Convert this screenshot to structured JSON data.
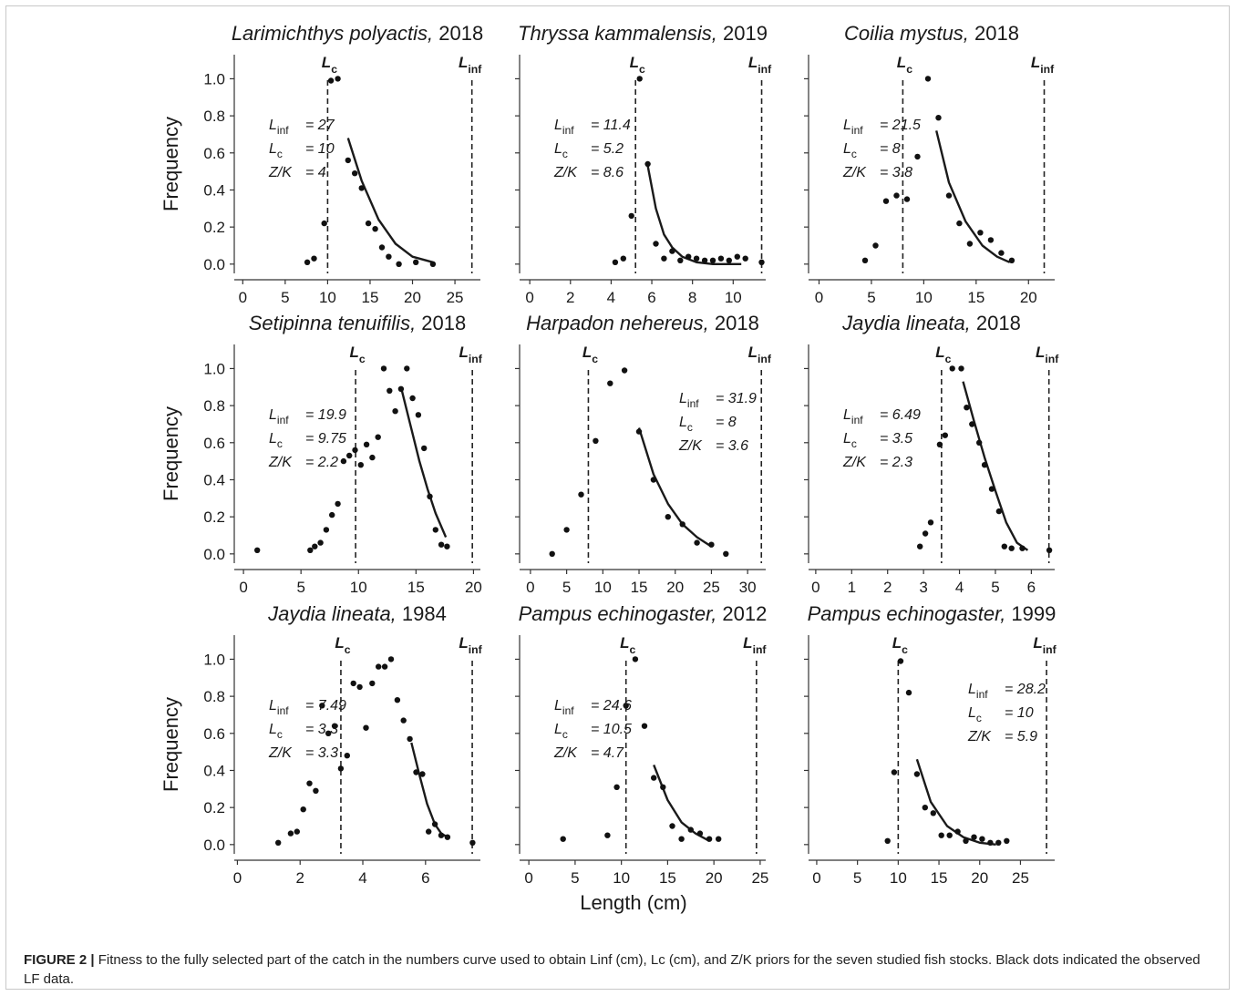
{
  "figure": {
    "xlabel": "Length (cm)",
    "ylabel": "Frequency",
    "caption_label": "FIGURE 2 |",
    "caption_text": "Fitness to the fully selected part of the catch in the numbers curve used to obtain Linf (cm), Lc (cm), and Z/K priors for the seven studied fish stocks. Black dots indicated the observed LF data."
  },
  "chart_data": [
    {
      "type": "scatter",
      "species": "Larimichthys polyactis",
      "year": "2018",
      "xlim": [
        -1,
        28
      ],
      "ylim": [
        -0.05,
        1.13
      ],
      "xticks": [
        0,
        5,
        10,
        15,
        20,
        25
      ],
      "yticks": [
        "0.0",
        "0.2",
        "0.4",
        "0.6",
        "0.8",
        "1.0"
      ],
      "Linf": 27,
      "Lc": 10,
      "params": {
        "Linf": "27",
        "Lc": "10",
        "ZK": "4"
      },
      "params_pos": "left",
      "points": [
        [
          7.6,
          0.01
        ],
        [
          8.4,
          0.03
        ],
        [
          9.6,
          0.22
        ],
        [
          10.4,
          0.99
        ],
        [
          11.2,
          1.0
        ],
        [
          12.4,
          0.56
        ],
        [
          13.2,
          0.49
        ],
        [
          14.0,
          0.41
        ],
        [
          14.8,
          0.22
        ],
        [
          15.6,
          0.19
        ],
        [
          16.4,
          0.09
        ],
        [
          17.2,
          0.04
        ],
        [
          18.4,
          0.0
        ],
        [
          20.4,
          0.01
        ],
        [
          22.4,
          0.0
        ]
      ],
      "fit": [
        [
          12.4,
          0.68
        ],
        [
          14,
          0.45
        ],
        [
          16,
          0.24
        ],
        [
          18,
          0.11
        ],
        [
          20,
          0.04
        ],
        [
          22.4,
          0.01
        ]
      ]
    },
    {
      "type": "scatter",
      "species": "Thryssa kammalensis",
      "year": "2019",
      "xlim": [
        -0.5,
        11.6
      ],
      "ylim": [
        -0.05,
        1.13
      ],
      "xticks": [
        0,
        2,
        4,
        6,
        8,
        10
      ],
      "yticks": [
        "0.0",
        "0.2",
        "0.4",
        "0.6",
        "0.8",
        "1.0"
      ],
      "Linf": 11.4,
      "Lc": 5.2,
      "params": {
        "Linf": "11.4",
        "Lc": "5.2",
        "ZK": "8.6"
      },
      "params_pos": "left",
      "points": [
        [
          4.2,
          0.01
        ],
        [
          4.6,
          0.03
        ],
        [
          5.0,
          0.26
        ],
        [
          5.4,
          1.0
        ],
        [
          5.8,
          0.54
        ],
        [
          6.2,
          0.11
        ],
        [
          6.6,
          0.03
        ],
        [
          7.0,
          0.07
        ],
        [
          7.4,
          0.02
        ],
        [
          7.8,
          0.04
        ],
        [
          8.2,
          0.03
        ],
        [
          8.6,
          0.02
        ],
        [
          9.0,
          0.02
        ],
        [
          9.4,
          0.03
        ],
        [
          9.8,
          0.02
        ],
        [
          10.2,
          0.04
        ],
        [
          10.6,
          0.03
        ],
        [
          11.4,
          0.01
        ]
      ],
      "fit": [
        [
          5.8,
          0.53
        ],
        [
          6.2,
          0.3
        ],
        [
          6.6,
          0.16
        ],
        [
          7.0,
          0.09
        ],
        [
          7.5,
          0.04
        ],
        [
          8.2,
          0.01
        ],
        [
          9,
          0.0
        ],
        [
          10.4,
          0.0
        ]
      ]
    },
    {
      "type": "scatter",
      "species": "Coilia mystus",
      "year": "2018",
      "xlim": [
        -1,
        22.5
      ],
      "ylim": [
        -0.05,
        1.13
      ],
      "xticks": [
        0,
        5,
        10,
        15,
        20
      ],
      "yticks": [
        "0.0",
        "0.2",
        "0.4",
        "0.6",
        "0.8",
        "1.0"
      ],
      "Linf": 21.5,
      "Lc": 8,
      "params": {
        "Linf": "21.5",
        "Lc": "8",
        "ZK": "3.8"
      },
      "params_pos": "left",
      "points": [
        [
          4.4,
          0.02
        ],
        [
          5.4,
          0.1
        ],
        [
          6.4,
          0.34
        ],
        [
          7.4,
          0.37
        ],
        [
          8.4,
          0.35
        ],
        [
          9.4,
          0.58
        ],
        [
          10.4,
          1.0
        ],
        [
          11.4,
          0.79
        ],
        [
          12.4,
          0.37
        ],
        [
          13.4,
          0.22
        ],
        [
          14.4,
          0.11
        ],
        [
          15.4,
          0.17
        ],
        [
          16.4,
          0.13
        ],
        [
          17.4,
          0.06
        ],
        [
          18.4,
          0.02
        ]
      ],
      "fit": [
        [
          11.2,
          0.72
        ],
        [
          12.4,
          0.44
        ],
        [
          14,
          0.23
        ],
        [
          15.6,
          0.1
        ],
        [
          17,
          0.04
        ],
        [
          18.2,
          0.01
        ]
      ]
    },
    {
      "type": "scatter",
      "species": "Setipinna tenuifilis",
      "year": "2018",
      "xlim": [
        -0.8,
        20.6
      ],
      "ylim": [
        -0.05,
        1.13
      ],
      "xticks": [
        0,
        5,
        10,
        15,
        20
      ],
      "yticks": [
        "0.0",
        "0.2",
        "0.4",
        "0.6",
        "0.8",
        "1.0"
      ],
      "Linf": 19.9,
      "Lc": 9.75,
      "params": {
        "Linf": "19.9",
        "Lc": "9.75",
        "ZK": "2.2"
      },
      "params_pos": "left",
      "points": [
        [
          1.2,
          0.02
        ],
        [
          5.8,
          0.02
        ],
        [
          6.2,
          0.04
        ],
        [
          6.7,
          0.06
        ],
        [
          7.2,
          0.13
        ],
        [
          7.7,
          0.21
        ],
        [
          8.2,
          0.27
        ],
        [
          8.7,
          0.5
        ],
        [
          9.2,
          0.53
        ],
        [
          9.7,
          0.56
        ],
        [
          10.2,
          0.48
        ],
        [
          10.7,
          0.59
        ],
        [
          11.2,
          0.52
        ],
        [
          11.7,
          0.63
        ],
        [
          12.2,
          1.0
        ],
        [
          12.7,
          0.88
        ],
        [
          13.2,
          0.77
        ],
        [
          13.7,
          0.89
        ],
        [
          14.2,
          1.0
        ],
        [
          14.7,
          0.84
        ],
        [
          15.2,
          0.75
        ],
        [
          15.7,
          0.57
        ],
        [
          16.2,
          0.31
        ],
        [
          16.7,
          0.13
        ],
        [
          17.2,
          0.05
        ],
        [
          17.7,
          0.04
        ]
      ],
      "fit": [
        [
          13.7,
          0.9
        ],
        [
          14.5,
          0.7
        ],
        [
          15.3,
          0.5
        ],
        [
          16.0,
          0.35
        ],
        [
          16.7,
          0.22
        ],
        [
          17.6,
          0.09
        ]
      ]
    },
    {
      "type": "scatter",
      "species": "Harpadon nehereus",
      "year": "2018",
      "xlim": [
        -1.5,
        32.5
      ],
      "ylim": [
        -0.05,
        1.13
      ],
      "xticks": [
        0,
        5,
        10,
        15,
        20,
        25,
        30
      ],
      "yticks": [
        "0.0",
        "0.2",
        "0.4",
        "0.6",
        "0.8",
        "1.0"
      ],
      "Linf": 31.9,
      "Lc": 8,
      "params": {
        "Linf": "31.9",
        "Lc": "8",
        "ZK": "3.6"
      },
      "params_pos": "right",
      "points": [
        [
          3.0,
          0.0
        ],
        [
          5.0,
          0.13
        ],
        [
          7.0,
          0.32
        ],
        [
          9.0,
          0.61
        ],
        [
          11.0,
          0.92
        ],
        [
          13.0,
          0.99
        ],
        [
          15.0,
          0.66
        ],
        [
          17.0,
          0.4
        ],
        [
          19.0,
          0.2
        ],
        [
          21.0,
          0.16
        ],
        [
          23.0,
          0.06
        ],
        [
          25.0,
          0.05
        ],
        [
          27.0,
          0.0
        ]
      ],
      "fit": [
        [
          15,
          0.68
        ],
        [
          17,
          0.43
        ],
        [
          19,
          0.27
        ],
        [
          21,
          0.16
        ],
        [
          23,
          0.09
        ],
        [
          25,
          0.04
        ]
      ]
    },
    {
      "type": "scatter",
      "species": "Jaydia lineata",
      "year": "2018",
      "xlim": [
        -0.2,
        6.65
      ],
      "ylim": [
        -0.05,
        1.13
      ],
      "xticks": [
        0,
        1,
        2,
        3,
        4,
        5,
        6
      ],
      "yticks": [
        "0.0",
        "0.2",
        "0.4",
        "0.6",
        "0.8",
        "1.0"
      ],
      "Linf": 6.49,
      "Lc": 3.5,
      "params": {
        "Linf": "6.49",
        "Lc": "3.5",
        "ZK": "2.3"
      },
      "params_pos": "left",
      "points": [
        [
          2.9,
          0.04
        ],
        [
          3.05,
          0.11
        ],
        [
          3.2,
          0.17
        ],
        [
          3.45,
          0.59
        ],
        [
          3.6,
          0.64
        ],
        [
          3.8,
          1.0
        ],
        [
          4.05,
          1.0
        ],
        [
          4.2,
          0.79
        ],
        [
          4.35,
          0.7
        ],
        [
          4.55,
          0.6
        ],
        [
          4.7,
          0.48
        ],
        [
          4.9,
          0.35
        ],
        [
          5.1,
          0.23
        ],
        [
          5.25,
          0.04
        ],
        [
          5.45,
          0.03
        ],
        [
          5.75,
          0.03
        ],
        [
          6.5,
          0.02
        ]
      ],
      "fit": [
        [
          4.1,
          0.93
        ],
        [
          4.4,
          0.72
        ],
        [
          4.7,
          0.52
        ],
        [
          5.0,
          0.34
        ],
        [
          5.3,
          0.17
        ],
        [
          5.6,
          0.06
        ],
        [
          5.9,
          0.02
        ]
      ]
    },
    {
      "type": "scatter",
      "species": "Jaydia lineata",
      "year": "1984",
      "xlim": [
        -0.1,
        7.75
      ],
      "ylim": [
        -0.05,
        1.13
      ],
      "xticks": [
        0,
        2,
        4,
        6
      ],
      "yticks": [
        "0.0",
        "0.2",
        "0.4",
        "0.6",
        "0.8",
        "1.0"
      ],
      "Linf": 7.49,
      "Lc": 3.3,
      "params": {
        "Linf": "7.49",
        "Lc": "3.3",
        "ZK": "3.3"
      },
      "params_pos": "left",
      "points": [
        [
          1.3,
          0.01
        ],
        [
          1.7,
          0.06
        ],
        [
          1.9,
          0.07
        ],
        [
          2.1,
          0.19
        ],
        [
          2.3,
          0.33
        ],
        [
          2.5,
          0.29
        ],
        [
          2.7,
          0.75
        ],
        [
          2.9,
          0.6
        ],
        [
          3.1,
          0.64
        ],
        [
          3.3,
          0.41
        ],
        [
          3.5,
          0.48
        ],
        [
          3.7,
          0.87
        ],
        [
          3.9,
          0.85
        ],
        [
          4.1,
          0.63
        ],
        [
          4.3,
          0.87
        ],
        [
          4.5,
          0.96
        ],
        [
          4.7,
          0.96
        ],
        [
          4.9,
          1.0
        ],
        [
          5.1,
          0.78
        ],
        [
          5.3,
          0.67
        ],
        [
          5.5,
          0.57
        ],
        [
          5.7,
          0.39
        ],
        [
          5.9,
          0.38
        ],
        [
          6.1,
          0.07
        ],
        [
          6.3,
          0.11
        ],
        [
          6.5,
          0.05
        ],
        [
          6.7,
          0.04
        ],
        [
          7.5,
          0.01
        ]
      ],
      "fit": [
        [
          5.55,
          0.55
        ],
        [
          5.8,
          0.38
        ],
        [
          6.05,
          0.22
        ],
        [
          6.3,
          0.11
        ],
        [
          6.5,
          0.06
        ],
        [
          6.7,
          0.04
        ]
      ]
    },
    {
      "type": "scatter",
      "species": "Pampus echinogaster",
      "year": "2012",
      "xlim": [
        -1,
        25.6
      ],
      "ylim": [
        -0.05,
        1.13
      ],
      "xticks": [
        0,
        5,
        10,
        15,
        20,
        25
      ],
      "yticks": [
        "0.0",
        "0.2",
        "0.4",
        "0.6",
        "0.8",
        "1.0"
      ],
      "Linf": 24.6,
      "Lc": 10.5,
      "params": {
        "Linf": "24.6",
        "Lc": "10.5",
        "ZK": "4.7"
      },
      "params_pos": "left",
      "points": [
        [
          3.7,
          0.03
        ],
        [
          8.5,
          0.05
        ],
        [
          9.5,
          0.31
        ],
        [
          10.5,
          0.75
        ],
        [
          11.5,
          1.0
        ],
        [
          12.5,
          0.64
        ],
        [
          13.5,
          0.36
        ],
        [
          14.5,
          0.31
        ],
        [
          15.5,
          0.1
        ],
        [
          16.5,
          0.03
        ],
        [
          17.5,
          0.08
        ],
        [
          18.5,
          0.06
        ],
        [
          19.5,
          0.03
        ],
        [
          20.5,
          0.03
        ]
      ],
      "fit": [
        [
          13.5,
          0.43
        ],
        [
          15,
          0.24
        ],
        [
          16.5,
          0.12
        ],
        [
          18,
          0.06
        ],
        [
          19.5,
          0.02
        ]
      ]
    },
    {
      "type": "scatter",
      "species": "Pampus echinogaster",
      "year": "1999",
      "xlim": [
        -1,
        29.2
      ],
      "ylim": [
        -0.05,
        1.13
      ],
      "xticks": [
        0,
        5,
        10,
        15,
        20,
        25
      ],
      "yticks": [
        "0.0",
        "0.2",
        "0.4",
        "0.6",
        "0.8",
        "1.0"
      ],
      "Linf": 28.2,
      "Lc": 10,
      "params": {
        "Linf": "28.2",
        "Lc": "10",
        "ZK": "5.9"
      },
      "params_pos": "right",
      "points": [
        [
          8.7,
          0.02
        ],
        [
          9.5,
          0.39
        ],
        [
          10.3,
          0.99
        ],
        [
          11.3,
          0.82
        ],
        [
          12.3,
          0.38
        ],
        [
          13.3,
          0.2
        ],
        [
          14.3,
          0.17
        ],
        [
          15.3,
          0.05
        ],
        [
          16.3,
          0.05
        ],
        [
          17.3,
          0.07
        ],
        [
          18.3,
          0.02
        ],
        [
          19.3,
          0.04
        ],
        [
          20.3,
          0.03
        ],
        [
          21.3,
          0.01
        ],
        [
          22.3,
          0.01
        ],
        [
          23.3,
          0.02
        ]
      ],
      "fit": [
        [
          12.3,
          0.46
        ],
        [
          14,
          0.23
        ],
        [
          16,
          0.1
        ],
        [
          18,
          0.04
        ],
        [
          20,
          0.01
        ],
        [
          22,
          0.0
        ]
      ]
    }
  ]
}
